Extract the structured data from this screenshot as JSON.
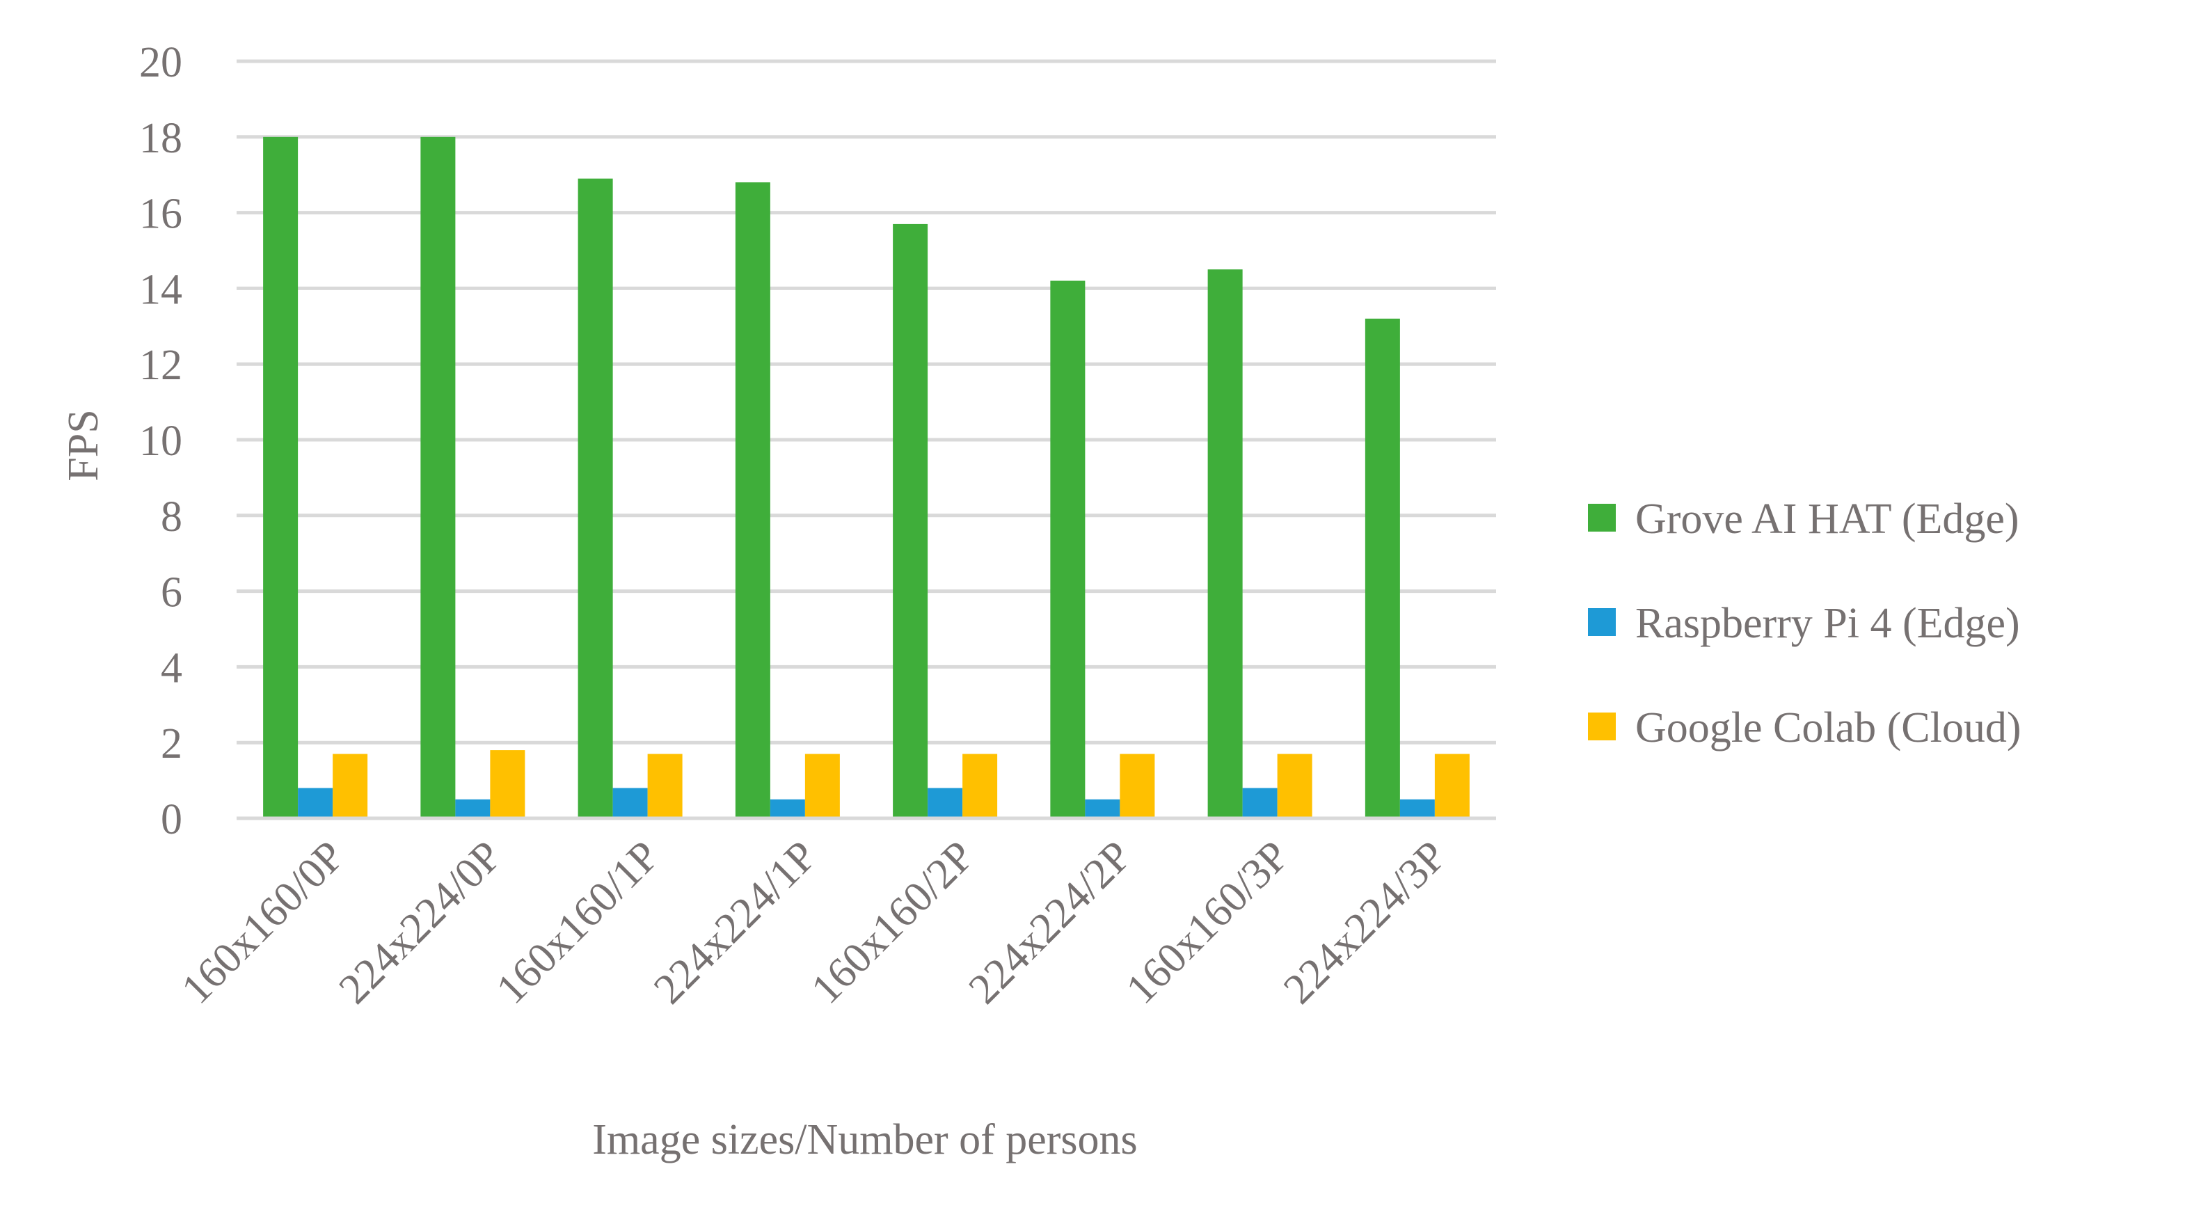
{
  "chart_data": {
    "type": "bar",
    "title": "",
    "xlabel": "Image sizes/Number of persons",
    "ylabel": "FPS",
    "ylim": [
      0,
      20
    ],
    "yticks": [
      0,
      2,
      4,
      6,
      8,
      10,
      12,
      14,
      16,
      18,
      20
    ],
    "grid": true,
    "legend_position": "right",
    "categories": [
      "160x160/0P",
      "224x224/0P",
      "160x160/1P",
      "224x224/1P",
      "160x160/2P",
      "224x224/2P",
      "160x160/3P",
      "224x224/3P"
    ],
    "series": [
      {
        "name": "Grove AI HAT (Edge)",
        "color": "#3fae3a",
        "values": [
          18,
          18,
          16.9,
          16.8,
          15.7,
          14.2,
          14.5,
          13.2
        ]
      },
      {
        "name": "Raspberry Pi 4 (Edge)",
        "color": "#1e9ad6",
        "values": [
          0.8,
          0.5,
          0.8,
          0.5,
          0.8,
          0.5,
          0.8,
          0.5
        ]
      },
      {
        "name": "Google Colab (Cloud)",
        "color": "#ffc000",
        "values": [
          1.7,
          1.8,
          1.7,
          1.7,
          1.7,
          1.7,
          1.7,
          1.7
        ]
      }
    ]
  }
}
